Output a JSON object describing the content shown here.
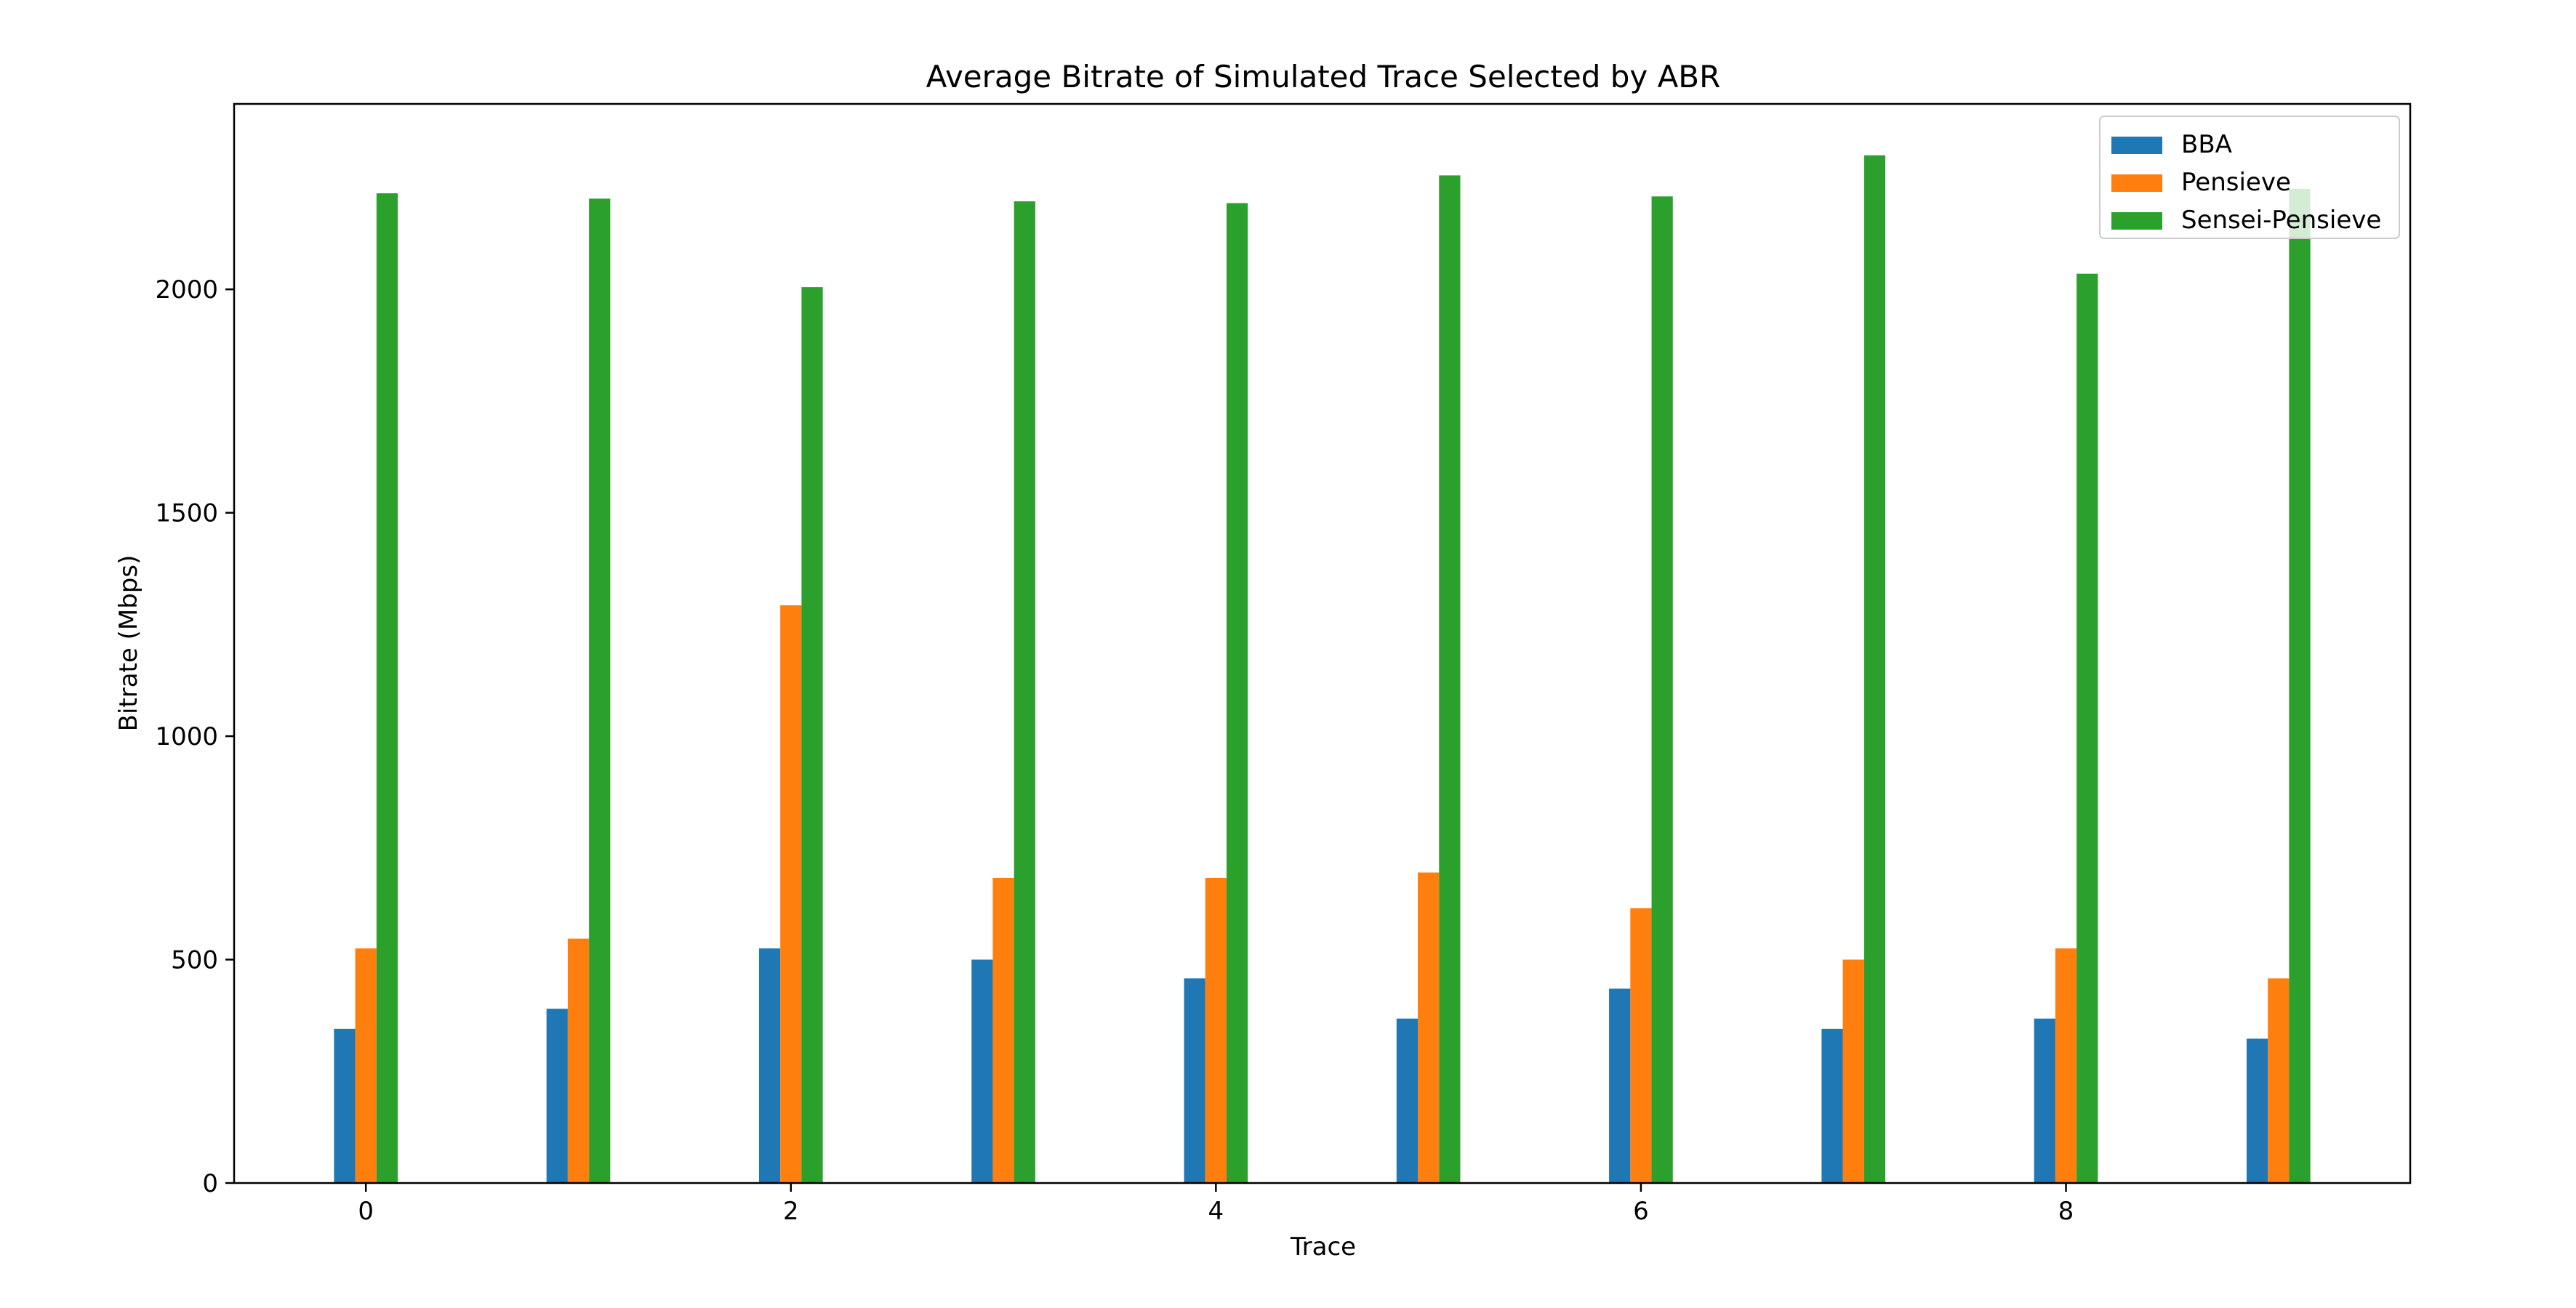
{
  "chart_data": {
    "type": "bar",
    "title": "Average Bitrate of Simulated Trace Selected by ABR",
    "xlabel": "Trace",
    "ylabel": "Bitrate (Mbps)",
    "x": [
      0,
      1,
      2,
      3,
      4,
      5,
      6,
      7,
      8,
      9
    ],
    "xticks": [
      "0",
      "2",
      "4",
      "6",
      "8"
    ],
    "yticks": [
      "0",
      "500",
      "1000",
      "1500",
      "2000"
    ],
    "ylim": [
      0,
      2415
    ],
    "grid": false,
    "legend_position": "top-right",
    "series": [
      {
        "name": "BBA",
        "color": "#1f77b4",
        "values": [
          345,
          390,
          525,
          500,
          458,
          368,
          435,
          345,
          368,
          323
        ]
      },
      {
        "name": "Pensieve",
        "color": "#ff7f0e",
        "values": [
          525,
          547,
          1293,
          683,
          683,
          695,
          615,
          500,
          525,
          458
        ]
      },
      {
        "name": "Sensei-Pensieve",
        "color": "#2ca02c",
        "values": [
          2215,
          2203,
          2005,
          2197,
          2193,
          2255,
          2208,
          2300,
          2035,
          2225
        ]
      }
    ]
  }
}
